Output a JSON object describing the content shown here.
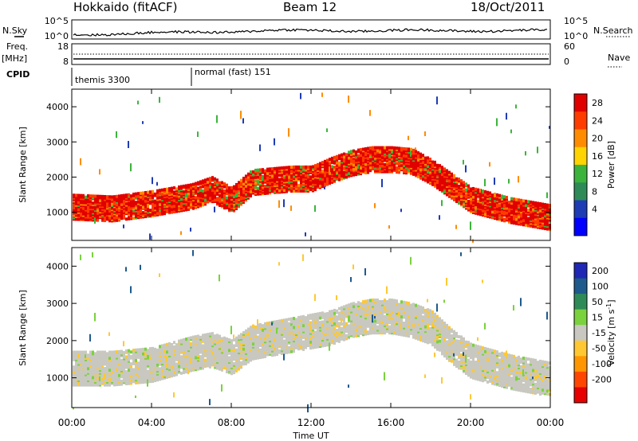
{
  "header": {
    "station": "Hokkaido (fitACF)",
    "beam": "Beam 12",
    "date": "18/Oct/2011"
  },
  "side_labels": {
    "nsky": "N.Sky",
    "freq": "Freq.",
    "freq_unit": "[MHz]",
    "cpid": "CPID",
    "nsearch": "N.Search",
    "nave": "Nave"
  },
  "noise_panel": {
    "left_ticks": [
      "10^5",
      "10^0"
    ],
    "right_ticks": [
      "10^5",
      "10^0"
    ]
  },
  "freq_panel": {
    "left_ticks": [
      "18",
      "8"
    ],
    "right_ticks": [
      "60",
      "0"
    ]
  },
  "cpid_panel": {
    "modes": [
      {
        "label": "themis 3300",
        "start_hour": 0
      },
      {
        "label": "normal (fast) 151",
        "start_hour": 6
      }
    ]
  },
  "x_axis": {
    "label": "Time UT",
    "ticks": [
      "00:00",
      "04:00",
      "08:00",
      "12:00",
      "16:00",
      "20:00",
      "00:00"
    ],
    "range_hours": [
      0,
      24
    ]
  },
  "y_axis": {
    "label": "Slant Range [km]",
    "ticks": [
      "1000",
      "2000",
      "3000",
      "4000"
    ],
    "range": [
      200,
      4500
    ]
  },
  "power_colorbar": {
    "label": "Power [dB]",
    "ticks": [
      "28",
      "24",
      "20",
      "16",
      "12",
      "8",
      "4"
    ],
    "colors": [
      "#e00000",
      "#ff3c00",
      "#ff8c00",
      "#ffd400",
      "#3cb43c",
      "#2e8b57",
      "#1e3cb4",
      "#0000ff"
    ]
  },
  "velocity_colorbar": {
    "label": "Velocity [m s",
    "label_sup": "-1",
    "label_end": "]",
    "ticks": [
      "200",
      "100",
      "50",
      "15",
      "-15",
      "-50",
      "-100",
      "-200"
    ],
    "colors": [
      "#1e28b4",
      "#1e5a8c",
      "#2e8b57",
      "#7ad23c",
      "#c8c8c0",
      "#ffc832",
      "#ff9600",
      "#ff4600",
      "#e60000"
    ]
  },
  "chart_data": [
    {
      "type": "heatmap",
      "name": "power",
      "x_range": [
        0,
        24
      ],
      "y_range": [
        200,
        4500
      ],
      "band_center_km": [
        [
          0,
          1200
        ],
        [
          2,
          1150
        ],
        [
          4,
          1300
        ],
        [
          6,
          1500
        ],
        [
          7,
          1700
        ],
        [
          8,
          1400
        ],
        [
          9,
          1900
        ],
        [
          11,
          2000
        ],
        [
          12,
          2000
        ],
        [
          13,
          2250
        ],
        [
          14,
          2450
        ],
        [
          15,
          2550
        ],
        [
          16,
          2550
        ],
        [
          17,
          2500
        ],
        [
          18,
          2200
        ],
        [
          19,
          1800
        ],
        [
          20,
          1400
        ],
        [
          22,
          1100
        ],
        [
          24,
          900
        ]
      ],
      "band_width_km": 700
    },
    {
      "type": "heatmap",
      "name": "velocity",
      "x_range": [
        0,
        24
      ],
      "y_range": [
        200,
        4500
      ],
      "band_center_km": [
        [
          0,
          1300
        ],
        [
          2,
          1300
        ],
        [
          4,
          1400
        ],
        [
          6,
          1700
        ],
        [
          7,
          1800
        ],
        [
          8,
          1600
        ],
        [
          9,
          2000
        ],
        [
          11,
          2200
        ],
        [
          12,
          2300
        ],
        [
          13,
          2400
        ],
        [
          14,
          2600
        ],
        [
          15,
          2700
        ],
        [
          16,
          2700
        ],
        [
          17,
          2600
        ],
        [
          18,
          2400
        ],
        [
          19,
          1900
        ],
        [
          20,
          1500
        ],
        [
          22,
          1200
        ],
        [
          24,
          1000
        ]
      ],
      "band_width_km": 900
    }
  ]
}
